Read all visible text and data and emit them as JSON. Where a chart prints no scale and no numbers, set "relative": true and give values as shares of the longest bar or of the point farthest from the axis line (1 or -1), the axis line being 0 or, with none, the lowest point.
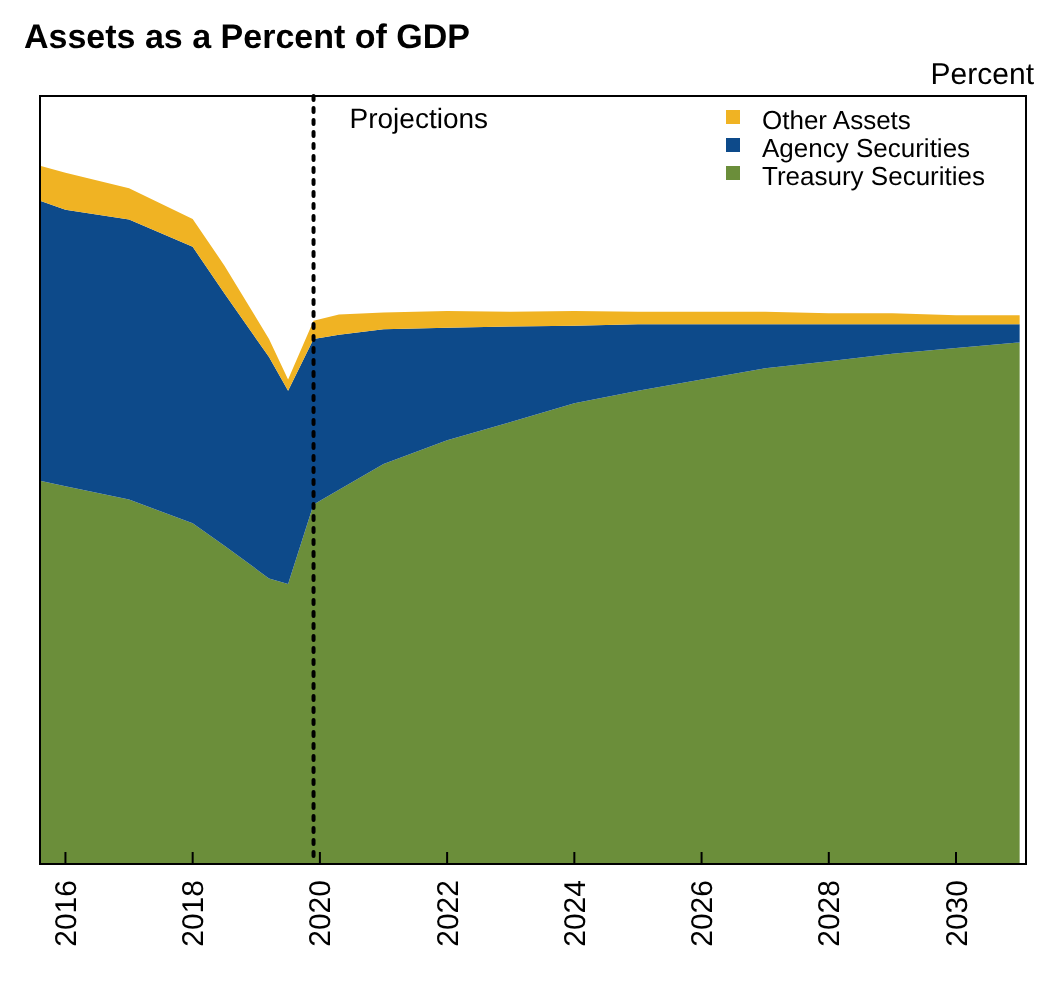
{
  "chart_data": {
    "type": "area",
    "title": "Assets as a Percent of GDP",
    "ylabel": "Percent",
    "relative": true,
    "stacked": true,
    "x": [
      2015.6,
      2016,
      2017,
      2018,
      2018.5,
      2019.2,
      2019.5,
      2019.9,
      2020.3,
      2021,
      2022,
      2023,
      2024,
      2025,
      2026,
      2027,
      2028,
      2029,
      2030,
      2031
    ],
    "xlim": [
      2015.6,
      2031.1
    ],
    "xticks": [
      2016,
      2018,
      2020,
      2022,
      2024,
      2026,
      2028,
      2030
    ],
    "series": [
      {
        "name": "Treasury Securities",
        "color": "#6b8e3a",
        "values": [
          0.549,
          0.541,
          0.522,
          0.488,
          0.456,
          0.409,
          0.401,
          0.515,
          0.536,
          0.573,
          0.607,
          0.633,
          0.66,
          0.678,
          0.694,
          0.71,
          0.72,
          0.731,
          0.739,
          0.747
        ]
      },
      {
        "name": "Agency Securities",
        "color": "#0d4a8a",
        "values": [
          0.401,
          0.396,
          0.401,
          0.396,
          0.361,
          0.317,
          0.277,
          0.237,
          0.222,
          0.193,
          0.161,
          0.137,
          0.111,
          0.095,
          0.079,
          0.063,
          0.053,
          0.042,
          0.034,
          0.026
        ]
      },
      {
        "name": "Other Assets",
        "color": "#f0b323",
        "values": [
          0.05,
          0.053,
          0.045,
          0.04,
          0.04,
          0.026,
          0.016,
          0.026,
          0.029,
          0.024,
          0.024,
          0.021,
          0.021,
          0.018,
          0.018,
          0.018,
          0.016,
          0.016,
          0.013,
          0.013
        ]
      }
    ],
    "ref_lines": [
      {
        "axis": "x",
        "value": 2019.9,
        "label": "Projections",
        "line_style": "dotted",
        "color": "#000000"
      }
    ],
    "legend": "top right",
    "grid": false
  }
}
